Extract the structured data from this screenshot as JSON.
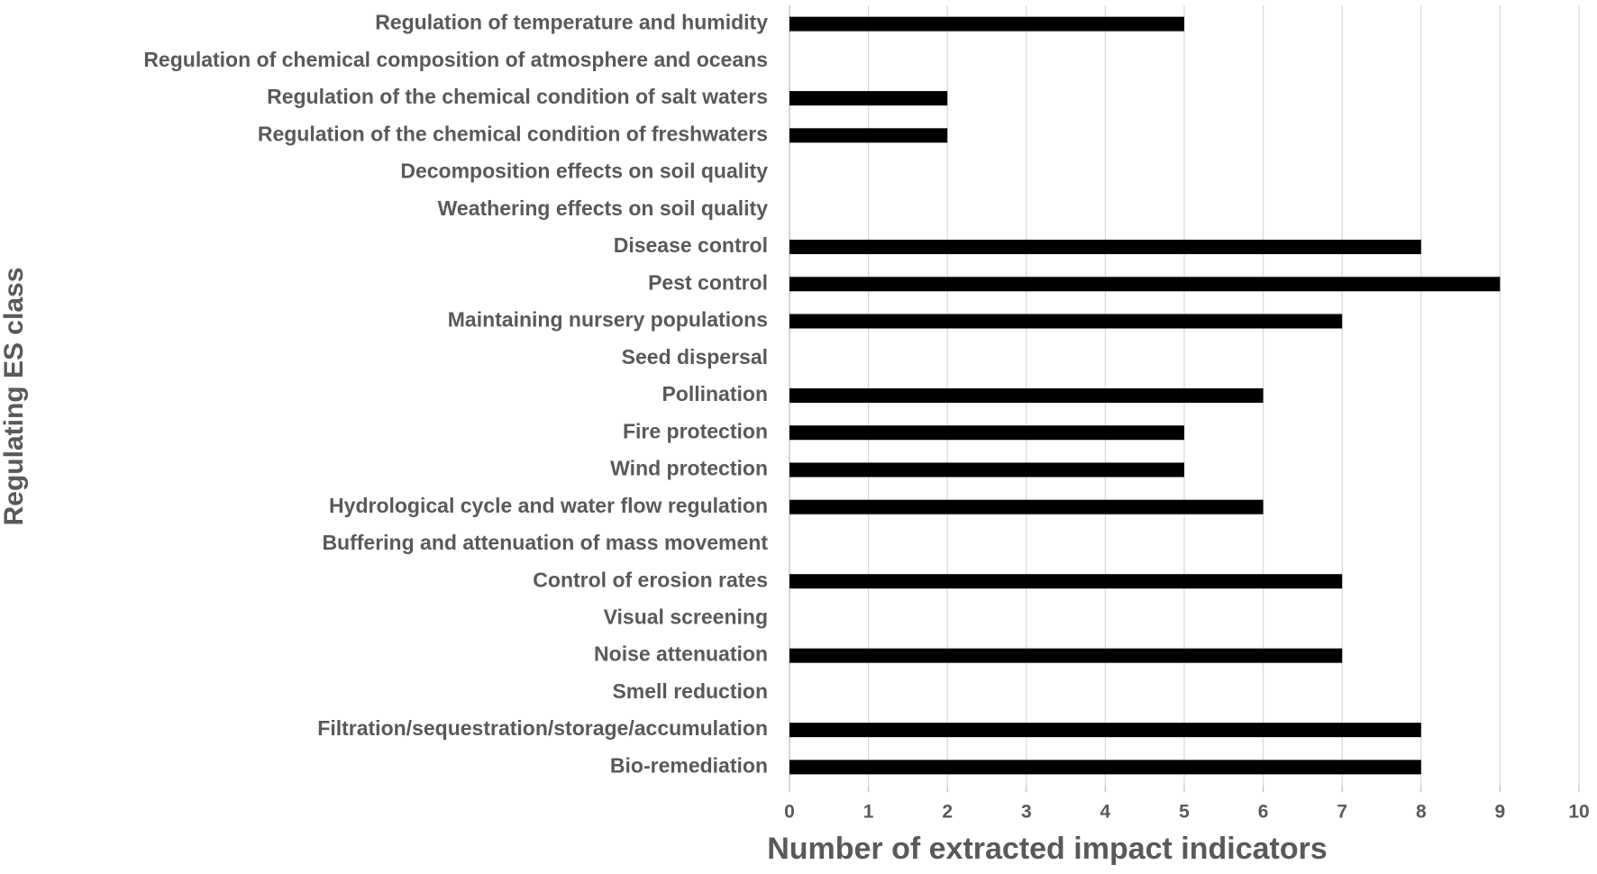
{
  "chart_data": {
    "type": "bar",
    "orientation": "horizontal",
    "x_label": "Number of extracted impact indicators",
    "y_label": "Regulating  ES class",
    "categories": [
      "Regulation of temperature and humidity",
      "Regulation of chemical composition of atmosphere and oceans",
      "Regulation of the chemical condition of salt waters",
      "Regulation of the chemical condition of freshwaters",
      "Decomposition effects on soil quality",
      "Weathering effects on soil quality",
      "Disease control",
      "Pest control",
      "Maintaining nursery populations",
      "Seed dispersal",
      "Pollination",
      "Fire protection",
      "Wind protection",
      "Hydrological cycle and water flow regulation",
      "Buffering and attenuation of mass movement",
      "Control of erosion rates",
      "Visual screening",
      "Noise attenuation",
      "Smell reduction",
      "Filtration/sequestration/storage/accumulation",
      "Bio-remediation"
    ],
    "values": [
      5,
      0,
      2,
      2,
      0,
      0,
      8,
      9,
      7,
      0,
      6,
      5,
      5,
      6,
      0,
      7,
      0,
      7,
      0,
      8,
      8
    ],
    "color": "#000000",
    "xlim": [
      0,
      10
    ],
    "xticks": [
      0,
      1,
      2,
      3,
      4,
      5,
      6,
      7,
      8,
      9,
      10
    ],
    "grid": true
  }
}
